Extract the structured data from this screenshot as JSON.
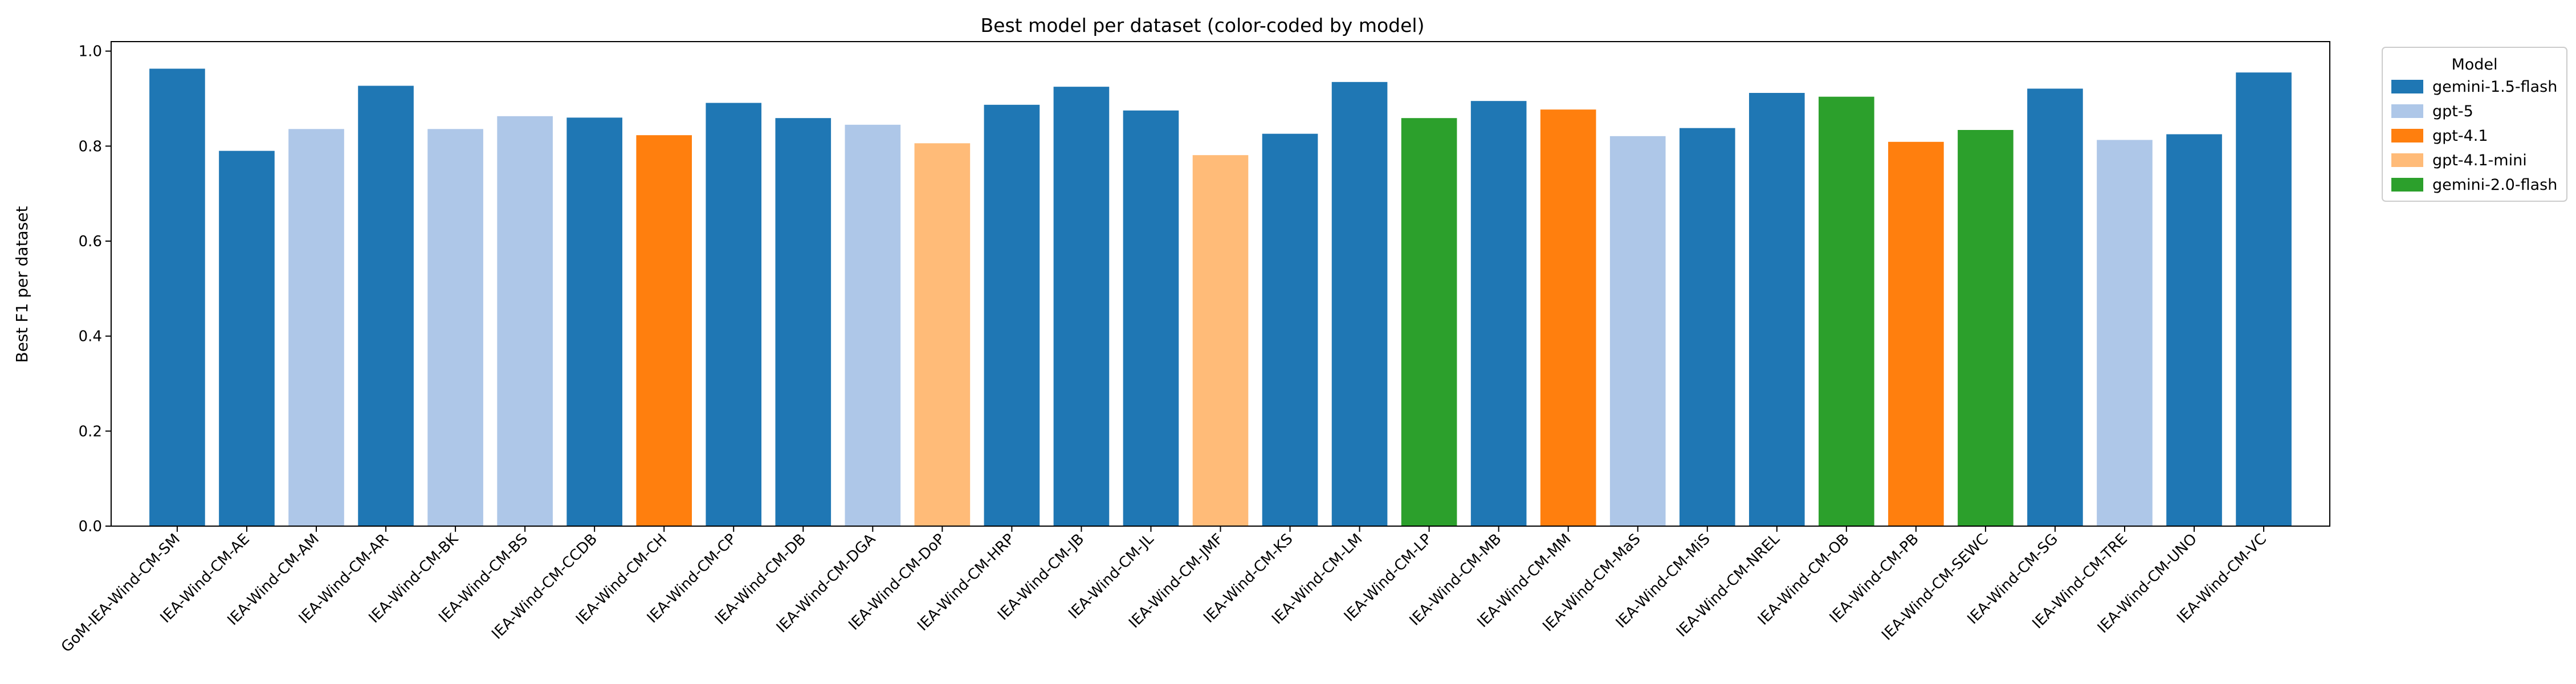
{
  "chart_data": {
    "type": "bar",
    "title": "Best model per dataset (color-coded by model)",
    "xlabel": "",
    "ylabel": "Best F1 per dataset",
    "ylim": [
      0,
      1.02
    ],
    "yticks": [
      "0.0",
      "0.2",
      "0.4",
      "0.6",
      "0.8",
      "1.0"
    ],
    "grid": false,
    "legend_title": "Model",
    "legend_position": "outside-top-right",
    "models": [
      {
        "name": "gemini-1.5-flash",
        "color": "#1f77b4"
      },
      {
        "name": "gpt-5",
        "color": "#aec7e8"
      },
      {
        "name": "gpt-4.1",
        "color": "#ff7f0e"
      },
      {
        "name": "gpt-4.1-mini",
        "color": "#ffbb78"
      },
      {
        "name": "gemini-2.0-flash",
        "color": "#2ca02c"
      }
    ],
    "categories": [
      "GoM-IEA-Wind-CM-SM",
      "IEA-Wind-CM-AE",
      "IEA-Wind-CM-AM",
      "IEA-Wind-CM-AR",
      "IEA-Wind-CM-BK",
      "IEA-Wind-CM-BS",
      "IEA-Wind-CM-CCDB",
      "IEA-Wind-CM-CH",
      "IEA-Wind-CM-CP",
      "IEA-Wind-CM-DB",
      "IEA-Wind-CM-DGA",
      "IEA-Wind-CM-DoP",
      "IEA-Wind-CM-HRP",
      "IEA-Wind-CM-JB",
      "IEA-Wind-CM-JL",
      "IEA-Wind-CM-JMF",
      "IEA-Wind-CM-KS",
      "IEA-Wind-CM-LM",
      "IEA-Wind-CM-LP",
      "IEA-Wind-CM-MB",
      "IEA-Wind-CM-MM",
      "IEA-Wind-CM-MaS",
      "IEA-Wind-CM-MiS",
      "IEA-Wind-CM-NREL",
      "IEA-Wind-CM-OB",
      "IEA-Wind-CM-PB",
      "IEA-Wind-CM-SEWC",
      "IEA-Wind-CM-SG",
      "IEA-Wind-CM-TRE",
      "IEA-Wind-CM-UNO",
      "IEA-Wind-CM-VC"
    ],
    "values": [
      0.963,
      0.79,
      0.836,
      0.927,
      0.836,
      0.863,
      0.86,
      0.823,
      0.891,
      0.859,
      0.845,
      0.806,
      0.887,
      0.925,
      0.875,
      0.781,
      0.826,
      0.935,
      0.859,
      0.895,
      0.877,
      0.821,
      0.838,
      0.912,
      0.904,
      0.809,
      0.834,
      0.921,
      0.813,
      0.825,
      0.955
    ],
    "bar_models": [
      "gemini-1.5-flash",
      "gemini-1.5-flash",
      "gpt-5",
      "gemini-1.5-flash",
      "gpt-5",
      "gpt-5",
      "gemini-1.5-flash",
      "gpt-4.1",
      "gemini-1.5-flash",
      "gemini-1.5-flash",
      "gpt-5",
      "gpt-4.1-mini",
      "gemini-1.5-flash",
      "gemini-1.5-flash",
      "gemini-1.5-flash",
      "gpt-4.1-mini",
      "gemini-1.5-flash",
      "gemini-1.5-flash",
      "gemini-2.0-flash",
      "gemini-1.5-flash",
      "gpt-4.1",
      "gpt-5",
      "gemini-1.5-flash",
      "gemini-1.5-flash",
      "gemini-2.0-flash",
      "gpt-4.1",
      "gemini-2.0-flash",
      "gemini-1.5-flash",
      "gpt-5",
      "gemini-1.5-flash",
      "gemini-1.5-flash"
    ]
  }
}
